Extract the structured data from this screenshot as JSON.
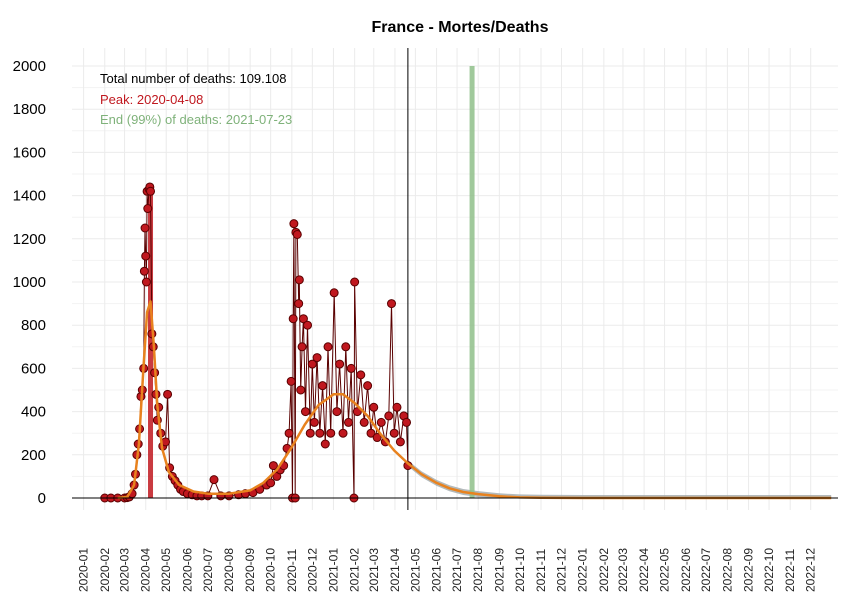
{
  "chart_data": {
    "type": "line",
    "title": "France - Mortes/Deaths",
    "xlabel": "",
    "ylabel": "",
    "ylim": [
      0,
      2000
    ],
    "y_ticks": [
      0,
      200,
      400,
      600,
      800,
      1000,
      1200,
      1400,
      1600,
      1800,
      2000
    ],
    "x_range": [
      "2019-12-15",
      "2023-01-10"
    ],
    "x_tick_labels": [
      "2020-01",
      "2020-02",
      "2020-03",
      "2020-04",
      "2020-05",
      "2020-06",
      "2020-07",
      "2020-08",
      "2020-09",
      "2020-10",
      "2020-11",
      "2020-12",
      "2021-01",
      "2021-02",
      "2021-03",
      "2021-04",
      "2021-05",
      "2021-06",
      "2021-07",
      "2021-08",
      "2021-09",
      "2021-10",
      "2021-11",
      "2021-12",
      "2022-01",
      "2022-02",
      "2022-03",
      "2022-04",
      "2022-05",
      "2022-06",
      "2022-07",
      "2022-08",
      "2022-09",
      "2022-10",
      "2022-11",
      "2022-12"
    ],
    "grid": true,
    "annotations": {
      "total": "Total number of deaths: 109.108",
      "peak": "Peak: 2020-04-08",
      "end": "End (99%) of deaths: 2021-07-23"
    },
    "colors": {
      "points": "#c0181f",
      "point_outline": "#5a0000",
      "daily_line": "#5a0000",
      "fit": "#e8821e",
      "fit_band": "#9aa3a6",
      "peak_line": "#c0181f",
      "end_line": "#8fbf8a",
      "today_line": "#000000"
    },
    "markers": {
      "peak_date": "2020-04-08",
      "end_date": "2021-07-23",
      "current_date": "2021-04-20"
    },
    "daily_deaths": [
      [
        "2020-02-01",
        0
      ],
      [
        "2020-02-10",
        0
      ],
      [
        "2020-02-20",
        0
      ],
      [
        "2020-03-01",
        0
      ],
      [
        "2020-03-05",
        2
      ],
      [
        "2020-03-08",
        5
      ],
      [
        "2020-03-12",
        20
      ],
      [
        "2020-03-15",
        60
      ],
      [
        "2020-03-17",
        110
      ],
      [
        "2020-03-19",
        200
      ],
      [
        "2020-03-21",
        250
      ],
      [
        "2020-03-23",
        320
      ],
      [
        "2020-03-25",
        470
      ],
      [
        "2020-03-27",
        500
      ],
      [
        "2020-03-29",
        600
      ],
      [
        "2020-03-30",
        1050
      ],
      [
        "2020-03-31",
        1250
      ],
      [
        "2020-04-01",
        1120
      ],
      [
        "2020-04-02",
        1000
      ],
      [
        "2020-04-03",
        1420
      ],
      [
        "2020-04-04",
        1340
      ],
      [
        "2020-04-06",
        1430
      ],
      [
        "2020-04-07",
        1440
      ],
      [
        "2020-04-08",
        1420
      ],
      [
        "2020-04-10",
        760
      ],
      [
        "2020-04-12",
        700
      ],
      [
        "2020-04-14",
        580
      ],
      [
        "2020-04-16",
        480
      ],
      [
        "2020-04-18",
        360
      ],
      [
        "2020-04-20",
        420
      ],
      [
        "2020-04-23",
        300
      ],
      [
        "2020-04-26",
        240
      ],
      [
        "2020-04-30",
        260
      ],
      [
        "2020-05-03",
        480
      ],
      [
        "2020-05-06",
        140
      ],
      [
        "2020-05-10",
        100
      ],
      [
        "2020-05-14",
        80
      ],
      [
        "2020-05-18",
        60
      ],
      [
        "2020-05-22",
        40
      ],
      [
        "2020-05-26",
        30
      ],
      [
        "2020-06-01",
        20
      ],
      [
        "2020-06-08",
        15
      ],
      [
        "2020-06-15",
        10
      ],
      [
        "2020-06-22",
        10
      ],
      [
        "2020-07-01",
        10
      ],
      [
        "2020-07-10",
        85
      ],
      [
        "2020-07-20",
        10
      ],
      [
        "2020-08-01",
        10
      ],
      [
        "2020-08-15",
        15
      ],
      [
        "2020-08-25",
        20
      ],
      [
        "2020-09-05",
        25
      ],
      [
        "2020-09-15",
        40
      ],
      [
        "2020-09-25",
        60
      ],
      [
        "2020-10-01",
        70
      ],
      [
        "2020-10-05",
        150
      ],
      [
        "2020-10-10",
        100
      ],
      [
        "2020-10-15",
        130
      ],
      [
        "2020-10-20",
        150
      ],
      [
        "2020-10-25",
        230
      ],
      [
        "2020-10-28",
        300
      ],
      [
        "2020-10-31",
        540
      ],
      [
        "2020-11-02",
        0
      ],
      [
        "2020-11-03",
        830
      ],
      [
        "2020-11-04",
        1270
      ],
      [
        "2020-11-06",
        0
      ],
      [
        "2020-11-07",
        1230
      ],
      [
        "2020-11-09",
        1220
      ],
      [
        "2020-11-11",
        900
      ],
      [
        "2020-11-12",
        1010
      ],
      [
        "2020-11-14",
        500
      ],
      [
        "2020-11-16",
        700
      ],
      [
        "2020-11-18",
        830
      ],
      [
        "2020-11-21",
        400
      ],
      [
        "2020-11-24",
        800
      ],
      [
        "2020-11-28",
        300
      ],
      [
        "2020-12-01",
        620
      ],
      [
        "2020-12-04",
        350
      ],
      [
        "2020-12-08",
        650
      ],
      [
        "2020-12-12",
        300
      ],
      [
        "2020-12-16",
        520
      ],
      [
        "2020-12-20",
        250
      ],
      [
        "2020-12-24",
        700
      ],
      [
        "2020-12-28",
        300
      ],
      [
        "2021-01-02",
        950
      ],
      [
        "2021-01-06",
        400
      ],
      [
        "2021-01-10",
        620
      ],
      [
        "2021-01-15",
        300
      ],
      [
        "2021-01-19",
        700
      ],
      [
        "2021-01-23",
        350
      ],
      [
        "2021-01-27",
        600
      ],
      [
        "2021-01-31",
        0
      ],
      [
        "2021-02-01",
        1000
      ],
      [
        "2021-02-05",
        400
      ],
      [
        "2021-02-10",
        570
      ],
      [
        "2021-02-15",
        350
      ],
      [
        "2021-02-20",
        520
      ],
      [
        "2021-02-25",
        300
      ],
      [
        "2021-03-01",
        420
      ],
      [
        "2021-03-06",
        280
      ],
      [
        "2021-03-12",
        350
      ],
      [
        "2021-03-18",
        260
      ],
      [
        "2021-03-23",
        380
      ],
      [
        "2021-03-27",
        900
      ],
      [
        "2021-03-31",
        300
      ],
      [
        "2021-04-04",
        420
      ],
      [
        "2021-04-09",
        260
      ],
      [
        "2021-04-14",
        380
      ],
      [
        "2021-04-18",
        350
      ],
      [
        "2021-04-20",
        150
      ]
    ],
    "fitted_curve": [
      [
        "2020-02-20",
        0
      ],
      [
        "2020-03-05",
        5
      ],
      [
        "2020-03-15",
        60
      ],
      [
        "2020-03-22",
        250
      ],
      [
        "2020-03-29",
        620
      ],
      [
        "2020-04-03",
        860
      ],
      [
        "2020-04-08",
        910
      ],
      [
        "2020-04-13",
        700
      ],
      [
        "2020-04-18",
        430
      ],
      [
        "2020-04-25",
        230
      ],
      [
        "2020-05-05",
        120
      ],
      [
        "2020-05-20",
        60
      ],
      [
        "2020-06-10",
        30
      ],
      [
        "2020-07-01",
        20
      ],
      [
        "2020-08-01",
        20
      ],
      [
        "2020-09-01",
        35
      ],
      [
        "2020-09-20",
        70
      ],
      [
        "2020-10-10",
        130
      ],
      [
        "2020-10-31",
        230
      ],
      [
        "2020-11-20",
        340
      ],
      [
        "2020-12-10",
        430
      ],
      [
        "2021-01-01",
        480
      ],
      [
        "2021-01-15",
        480
      ],
      [
        "2021-02-01",
        440
      ],
      [
        "2021-02-20",
        380
      ],
      [
        "2021-03-10",
        300
      ],
      [
        "2021-03-31",
        220
      ],
      [
        "2021-04-20",
        160
      ],
      [
        "2021-05-10",
        110
      ],
      [
        "2021-06-01",
        70
      ],
      [
        "2021-06-20",
        45
      ],
      [
        "2021-07-10",
        28
      ],
      [
        "2021-08-01",
        18
      ],
      [
        "2021-09-01",
        8
      ],
      [
        "2021-10-01",
        3
      ],
      [
        "2021-11-01",
        1
      ],
      [
        "2022-01-01",
        0
      ],
      [
        "2022-12-31",
        0
      ]
    ]
  }
}
